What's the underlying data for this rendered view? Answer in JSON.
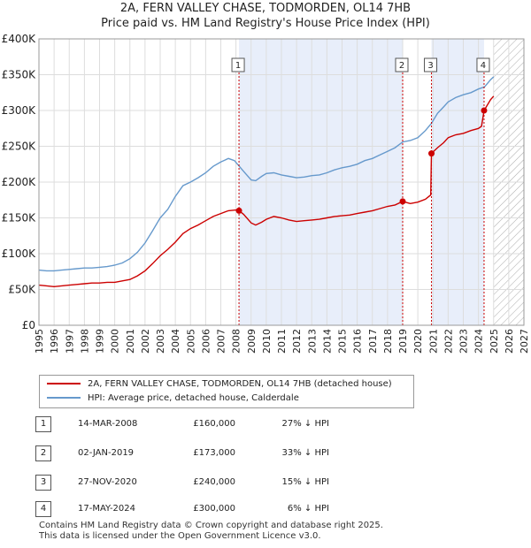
{
  "title_line1": "2A, FERN VALLEY CHASE, TODMORDEN, OL14 7HB",
  "title_line2": "Price paid vs. HM Land Registry's House Price Index (HPI)",
  "colors": {
    "property": "#cc0000",
    "hpi": "#6699cc",
    "shade": "#e8eefa",
    "vline": "#cc0000",
    "grid": "#dddddd"
  },
  "legend": {
    "property": "2A, FERN VALLEY CHASE, TODMORDEN, OL14 7HB (detached house)",
    "hpi": "HPI: Average price, detached house, Calderdale"
  },
  "transactions": [
    {
      "num": "1",
      "date": "14-MAR-2008",
      "price": "£160,000",
      "hpi": "27% ↓ HPI"
    },
    {
      "num": "2",
      "date": "02-JAN-2019",
      "price": "£173,000",
      "hpi": "33% ↓ HPI"
    },
    {
      "num": "3",
      "date": "27-NOV-2020",
      "price": "£240,000",
      "hpi": "15% ↓ HPI"
    },
    {
      "num": "4",
      "date": "17-MAY-2024",
      "price": "£300,000",
      "hpi": "6% ↓ HPI"
    }
  ],
  "footer_line1": "Contains HM Land Registry data © Crown copyright and database right 2025.",
  "footer_line2": "This data is licensed under the Open Government Licence v3.0.",
  "chart_data": {
    "type": "line",
    "title": "2A, FERN VALLEY CHASE, TODMORDEN, OL14 7HB — Price paid vs. HM Land Registry's House Price Index (HPI)",
    "xlabel": "",
    "ylabel": "",
    "xlim": [
      1995,
      2027
    ],
    "ylim": [
      0,
      400000
    ],
    "x_ticks": [
      "1995",
      "1996",
      "1997",
      "1998",
      "1999",
      "2000",
      "2001",
      "2002",
      "2003",
      "2004",
      "2005",
      "2006",
      "2007",
      "2008",
      "2009",
      "2010",
      "2011",
      "2012",
      "2013",
      "2014",
      "2015",
      "2016",
      "2017",
      "2018",
      "2019",
      "2020",
      "2021",
      "2022",
      "2023",
      "2024",
      "2025",
      "2026",
      "2027"
    ],
    "y_ticks": [
      {
        "value": 0,
        "label": "£0"
      },
      {
        "value": 50000,
        "label": "£50K"
      },
      {
        "value": 100000,
        "label": "£100K"
      },
      {
        "value": 150000,
        "label": "£150K"
      },
      {
        "value": 200000,
        "label": "£200K"
      },
      {
        "value": 250000,
        "label": "£250K"
      },
      {
        "value": 300000,
        "label": "£300K"
      },
      {
        "value": 350000,
        "label": "£350K"
      },
      {
        "value": 400000,
        "label": "£400K"
      }
    ],
    "shaded_ranges": [
      [
        2008.2,
        2018.99
      ],
      [
        2020.9,
        2024.37
      ]
    ],
    "hatched_from": 2025.0,
    "series": [
      {
        "name": "HPI: Average price, detached house, Calderdale",
        "color": "#6699cc",
        "x": [
          1995,
          1995.5,
          1996,
          1996.5,
          1997,
          1997.5,
          1998,
          1998.5,
          1999,
          1999.5,
          2000,
          2000.5,
          2001,
          2001.5,
          2002,
          2002.5,
          2003,
          2003.5,
          2004,
          2004.5,
          2005,
          2005.5,
          2006,
          2006.5,
          2007,
          2007.5,
          2007.9,
          2008.5,
          2009,
          2009.3,
          2009.7,
          2010,
          2010.5,
          2011,
          2011.5,
          2012,
          2012.5,
          2013,
          2013.5,
          2014,
          2014.5,
          2015,
          2015.5,
          2016,
          2016.5,
          2017,
          2017.5,
          2018,
          2018.5,
          2019,
          2019.5,
          2020,
          2020.5,
          2020.9,
          2021.3,
          2021.7,
          2022,
          2022.5,
          2023,
          2023.5,
          2024,
          2024.4,
          2024.8,
          2025.0
        ],
        "values": [
          77000,
          76000,
          76000,
          77000,
          78000,
          79000,
          80000,
          80000,
          81000,
          82000,
          84000,
          87000,
          93000,
          102000,
          115000,
          132000,
          150000,
          162000,
          180000,
          195000,
          200000,
          206000,
          213000,
          222000,
          228000,
          233000,
          230000,
          215000,
          203000,
          202000,
          208000,
          212000,
          213000,
          210000,
          208000,
          206000,
          207000,
          209000,
          210000,
          213000,
          217000,
          220000,
          222000,
          225000,
          230000,
          233000,
          238000,
          243000,
          248000,
          256000,
          258000,
          262000,
          272000,
          282000,
          296000,
          305000,
          312000,
          318000,
          322000,
          325000,
          330000,
          333000,
          343000,
          347000
        ]
      },
      {
        "name": "2A, FERN VALLEY CHASE, TODMORDEN, OL14 7HB (detached house)",
        "color": "#cc0000",
        "x": [
          1995,
          1995.5,
          1996,
          1996.5,
          1997,
          1997.5,
          1998,
          1998.5,
          1999,
          1999.5,
          2000,
          2000.5,
          2001,
          2001.5,
          2002,
          2002.5,
          2003,
          2003.5,
          2004,
          2004.5,
          2005,
          2005.5,
          2006,
          2006.5,
          2007,
          2007.5,
          2008.0,
          2008.2,
          2008.5,
          2009,
          2009.3,
          2009.7,
          2010,
          2010.5,
          2011,
          2011.5,
          2012,
          2012.5,
          2013,
          2013.5,
          2014,
          2014.5,
          2015,
          2015.5,
          2016,
          2016.5,
          2017,
          2017.5,
          2018,
          2018.5,
          2019.0,
          2019.5,
          2020,
          2020.5,
          2020.85,
          2020.9,
          2021.3,
          2021.7,
          2022,
          2022.5,
          2023,
          2023.5,
          2024,
          2024.2,
          2024.37,
          2024.8,
          2025.0
        ],
        "values": [
          56000,
          55000,
          54000,
          55000,
          56000,
          57000,
          58000,
          59000,
          59000,
          60000,
          60000,
          62000,
          64000,
          69000,
          76000,
          86000,
          97000,
          106000,
          116000,
          128000,
          135000,
          140000,
          146000,
          152000,
          156000,
          160000,
          161000,
          160000,
          155000,
          143000,
          140000,
          144000,
          148000,
          152000,
          150000,
          147000,
          145000,
          146000,
          147000,
          148000,
          150000,
          152000,
          153000,
          154000,
          156000,
          158000,
          160000,
          163000,
          166000,
          168000,
          173000,
          170000,
          172000,
          176000,
          182000,
          240000,
          248000,
          255000,
          262000,
          266000,
          268000,
          272000,
          275000,
          278000,
          300000,
          315000,
          320000
        ]
      }
    ],
    "sales": [
      {
        "label": "1",
        "x": 2008.2,
        "value": 160000
      },
      {
        "label": "2",
        "x": 2019.0,
        "value": 173000
      },
      {
        "label": "3",
        "x": 2020.9,
        "value": 240000
      },
      {
        "label": "4",
        "x": 2024.37,
        "value": 300000
      }
    ]
  }
}
